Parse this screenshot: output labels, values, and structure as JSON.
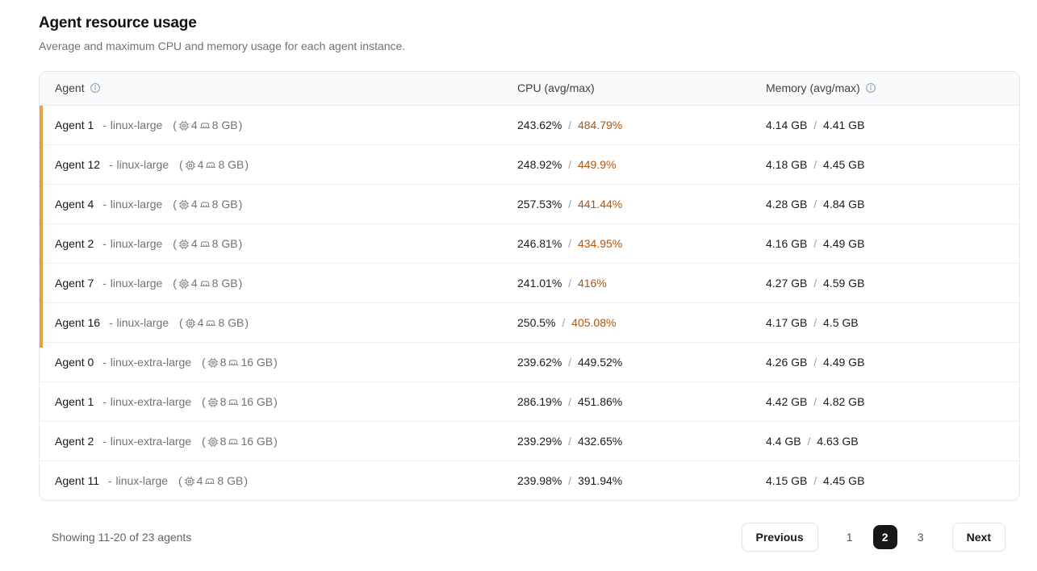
{
  "page": {
    "title": "Agent resource usage",
    "subtitle": "Average and maximum CPU and memory usage for each agent instance."
  },
  "table": {
    "columns": [
      {
        "label": "Agent",
        "info": true
      },
      {
        "label": "CPU (avg/max)",
        "info": false
      },
      {
        "label": "Memory (avg/max)",
        "info": true
      }
    ],
    "dash": "-",
    "separator": "/",
    "spec_open": "(",
    "spec_close": ")",
    "rows": [
      {
        "name": "Agent 1",
        "type": "linux-large",
        "cpus": "4",
        "mem": "8 GB",
        "cpu_avg": "243.62%",
        "cpu_max": "484.79%",
        "warn": true,
        "mem_avg": "4.14 GB",
        "mem_max": "4.41 GB"
      },
      {
        "name": "Agent 12",
        "type": "linux-large",
        "cpus": "4",
        "mem": "8 GB",
        "cpu_avg": "248.92%",
        "cpu_max": "449.9%",
        "warn": true,
        "mem_avg": "4.18 GB",
        "mem_max": "4.45 GB"
      },
      {
        "name": "Agent 4",
        "type": "linux-large",
        "cpus": "4",
        "mem": "8 GB",
        "cpu_avg": "257.53%",
        "cpu_max": "441.44%",
        "warn": true,
        "mem_avg": "4.28 GB",
        "mem_max": "4.84 GB"
      },
      {
        "name": "Agent 2",
        "type": "linux-large",
        "cpus": "4",
        "mem": "8 GB",
        "cpu_avg": "246.81%",
        "cpu_max": "434.95%",
        "warn": true,
        "mem_avg": "4.16 GB",
        "mem_max": "4.49 GB"
      },
      {
        "name": "Agent 7",
        "type": "linux-large",
        "cpus": "4",
        "mem": "8 GB",
        "cpu_avg": "241.01%",
        "cpu_max": "416%",
        "warn": true,
        "mem_avg": "4.27 GB",
        "mem_max": "4.59 GB"
      },
      {
        "name": "Agent 16",
        "type": "linux-large",
        "cpus": "4",
        "mem": "8 GB",
        "cpu_avg": "250.5%",
        "cpu_max": "405.08%",
        "warn": true,
        "mem_avg": "4.17 GB",
        "mem_max": "4.5 GB"
      },
      {
        "name": "Agent 0",
        "type": "linux-extra-large",
        "cpus": "8",
        "mem": "16 GB",
        "cpu_avg": "239.62%",
        "cpu_max": "449.52%",
        "warn": false,
        "mem_avg": "4.26 GB",
        "mem_max": "4.49 GB"
      },
      {
        "name": "Agent 1",
        "type": "linux-extra-large",
        "cpus": "8",
        "mem": "16 GB",
        "cpu_avg": "286.19%",
        "cpu_max": "451.86%",
        "warn": false,
        "mem_avg": "4.42 GB",
        "mem_max": "4.82 GB"
      },
      {
        "name": "Agent 2",
        "type": "linux-extra-large",
        "cpus": "8",
        "mem": "16 GB",
        "cpu_avg": "239.29%",
        "cpu_max": "432.65%",
        "warn": false,
        "mem_avg": "4.4 GB",
        "mem_max": "4.63 GB"
      },
      {
        "name": "Agent 11",
        "type": "linux-large",
        "cpus": "4",
        "mem": "8 GB",
        "cpu_avg": "239.98%",
        "cpu_max": "391.94%",
        "warn": false,
        "mem_avg": "4.15 GB",
        "mem_max": "4.45 GB"
      }
    ]
  },
  "footer": {
    "showing": "Showing 11-20 of 23 agents"
  },
  "pagination": {
    "previous_label": "Previous",
    "pages": [
      "1",
      "2",
      "3"
    ],
    "active_page": "2",
    "next_label": "Next"
  },
  "colors": {
    "accent_bar": "#E6A23C",
    "warn_text": "#B45309",
    "active_page_bg": "#17171A"
  }
}
